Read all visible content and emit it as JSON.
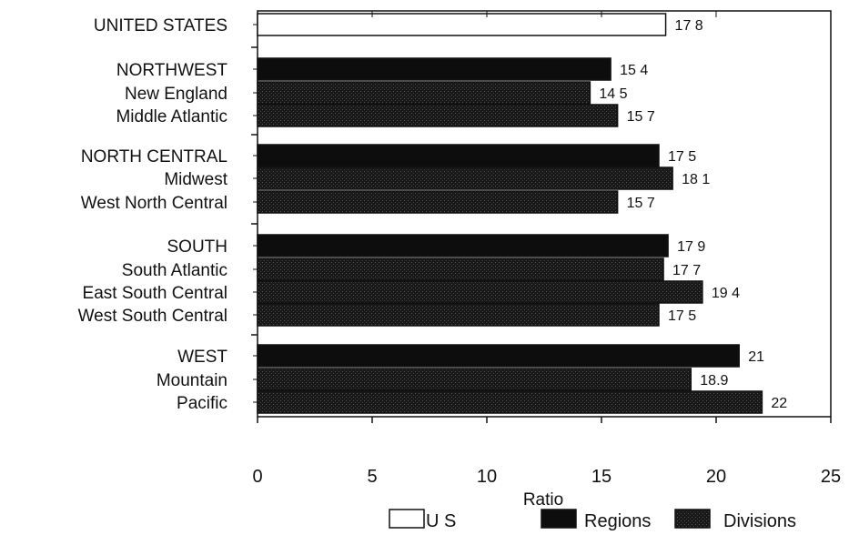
{
  "chart_data": {
    "type": "bar",
    "orientation": "horizontal",
    "xlabel": "Ratio",
    "xlim": [
      0,
      25
    ],
    "xticks": [
      "0",
      "5",
      "10",
      "15",
      "20",
      "25"
    ],
    "grid": false,
    "legend_position": "bottom",
    "categories": [
      "UNITED STATES",
      "NORTHWEST",
      "New England",
      "Middle Atlantic",
      "NORTH CENTRAL",
      "Midwest",
      "West North Central",
      "SOUTH",
      "South Atlantic",
      "East South Central",
      "West South Central",
      "WEST",
      "Mountain",
      "Pacific"
    ],
    "groups": [
      1,
      3,
      3,
      4,
      3
    ],
    "values": [
      17.8,
      15.4,
      14.5,
      15.7,
      17.5,
      18.1,
      15.7,
      17.9,
      17.7,
      19.4,
      17.5,
      21,
      18.9,
      22
    ],
    "value_labels": [
      "17 8",
      "15 4",
      "14 5",
      "15 7",
      "17 5",
      "18 1",
      "15 7",
      "17 9",
      "17 7",
      "19 4",
      "17 5",
      "21",
      "18.9",
      "22"
    ],
    "kinds": [
      "us",
      "region",
      "division",
      "division",
      "region",
      "division",
      "division",
      "region",
      "division",
      "division",
      "division",
      "region",
      "division",
      "division"
    ],
    "legend": [
      {
        "key": "us",
        "label": "U S"
      },
      {
        "key": "region",
        "label": "Regions"
      },
      {
        "key": "division",
        "label": "Divisions"
      }
    ],
    "colors": {
      "us": "#ffffff",
      "region": "#0d0d0d",
      "division": "#151515",
      "outline": "#111111"
    }
  }
}
